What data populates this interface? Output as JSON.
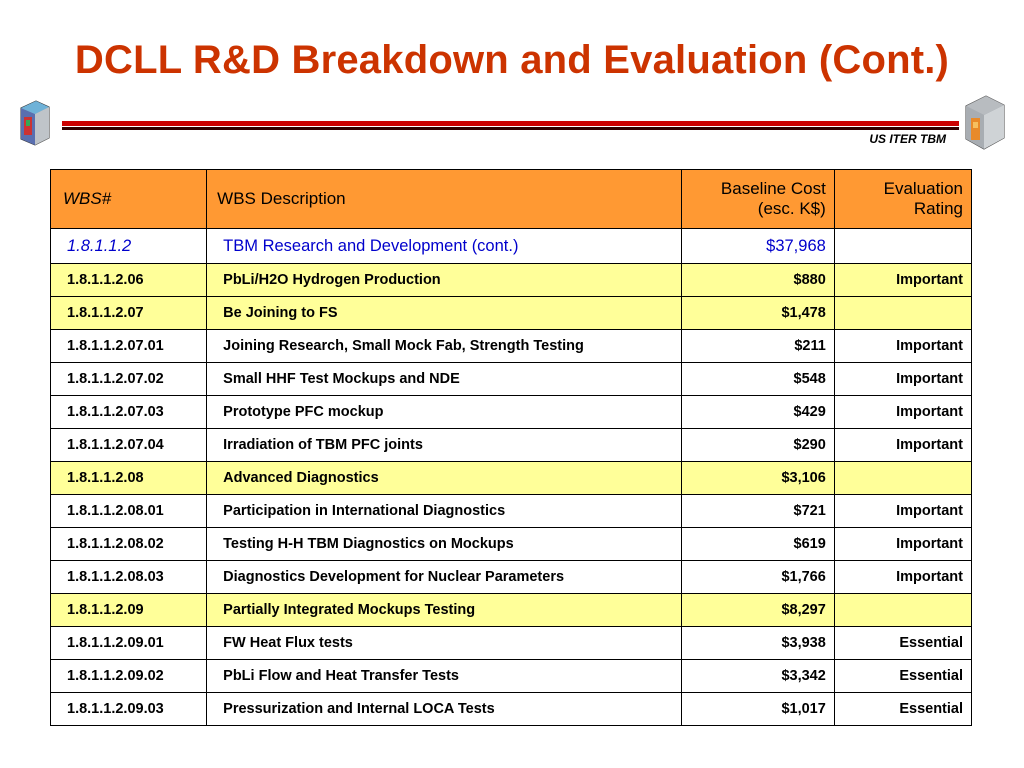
{
  "slide": {
    "title": "DCLL R&D Breakdown and Evaluation (Cont.)",
    "subtitle": "US ITER TBM",
    "left_logo": "iter-tbm-blanket-module-icon",
    "right_logo": "iter-tbm-blanket-module-icon",
    "colors": {
      "title": "#cc3300",
      "header_fill": "#ff9933",
      "highlight_fill": "#ffff99",
      "top_row_text": "#0000cc",
      "rule": "#cc0000"
    }
  },
  "table": {
    "headers": {
      "wbs": "WBS#",
      "description": "WBS Description",
      "cost": "Baseline Cost (esc. K$)",
      "rating": "Evaluation Rating"
    },
    "rows": [
      {
        "wbs": "1.8.1.1.2",
        "description": "TBM Research and Development (cont.)",
        "cost": "$37,968",
        "rating": "",
        "style": "top"
      },
      {
        "wbs": "1.8.1.1.2.06",
        "description": "PbLi/H2O Hydrogen Production",
        "cost": "$880",
        "rating": "Important",
        "style": "highlight"
      },
      {
        "wbs": "1.8.1.1.2.07",
        "description": "Be Joining to FS",
        "cost": "$1,478",
        "rating": "",
        "style": "highlight"
      },
      {
        "wbs": "1.8.1.1.2.07.01",
        "description": "Joining Research, Small Mock Fab, Strength Testing",
        "cost": "$211",
        "rating": "Important",
        "style": "normal"
      },
      {
        "wbs": "1.8.1.1.2.07.02",
        "description": "Small HHF Test Mockups and NDE",
        "cost": "$548",
        "rating": "Important",
        "style": "normal"
      },
      {
        "wbs": "1.8.1.1.2.07.03",
        "description": "Prototype PFC mockup",
        "cost": "$429",
        "rating": "Important",
        "style": "normal"
      },
      {
        "wbs": "1.8.1.1.2.07.04",
        "description": "Irradiation of TBM PFC joints",
        "cost": "$290",
        "rating": "Important",
        "style": "normal"
      },
      {
        "wbs": "1.8.1.1.2.08",
        "description": "Advanced Diagnostics",
        "cost": "$3,106",
        "rating": "",
        "style": "highlight"
      },
      {
        "wbs": "1.8.1.1.2.08.01",
        "description": "Participation in International Diagnostics",
        "cost": "$721",
        "rating": "Important",
        "style": "normal"
      },
      {
        "wbs": "1.8.1.1.2.08.02",
        "description": "Testing H-H TBM Diagnostics on Mockups",
        "cost": "$619",
        "rating": "Important",
        "style": "normal"
      },
      {
        "wbs": "1.8.1.1.2.08.03",
        "description": "Diagnostics Development for  Nuclear Parameters",
        "cost": "$1,766",
        "rating": "Important",
        "style": "normal"
      },
      {
        "wbs": "1.8.1.1.2.09",
        "description": "Partially Integrated Mockups Testing",
        "cost": "$8,297",
        "rating": "",
        "style": "highlight"
      },
      {
        "wbs": "1.8.1.1.2.09.01",
        "description": "FW Heat Flux tests",
        "cost": "$3,938",
        "rating": "Essential",
        "style": "normal"
      },
      {
        "wbs": "1.8.1.1.2.09.02",
        "description": "PbLi Flow and Heat Transfer Tests",
        "cost": "$3,342",
        "rating": "Essential",
        "style": "normal"
      },
      {
        "wbs": "1.8.1.1.2.09.03",
        "description": "Pressurization and Internal LOCA Tests",
        "cost": "$1,017",
        "rating": "Essential",
        "style": "normal"
      }
    ]
  }
}
